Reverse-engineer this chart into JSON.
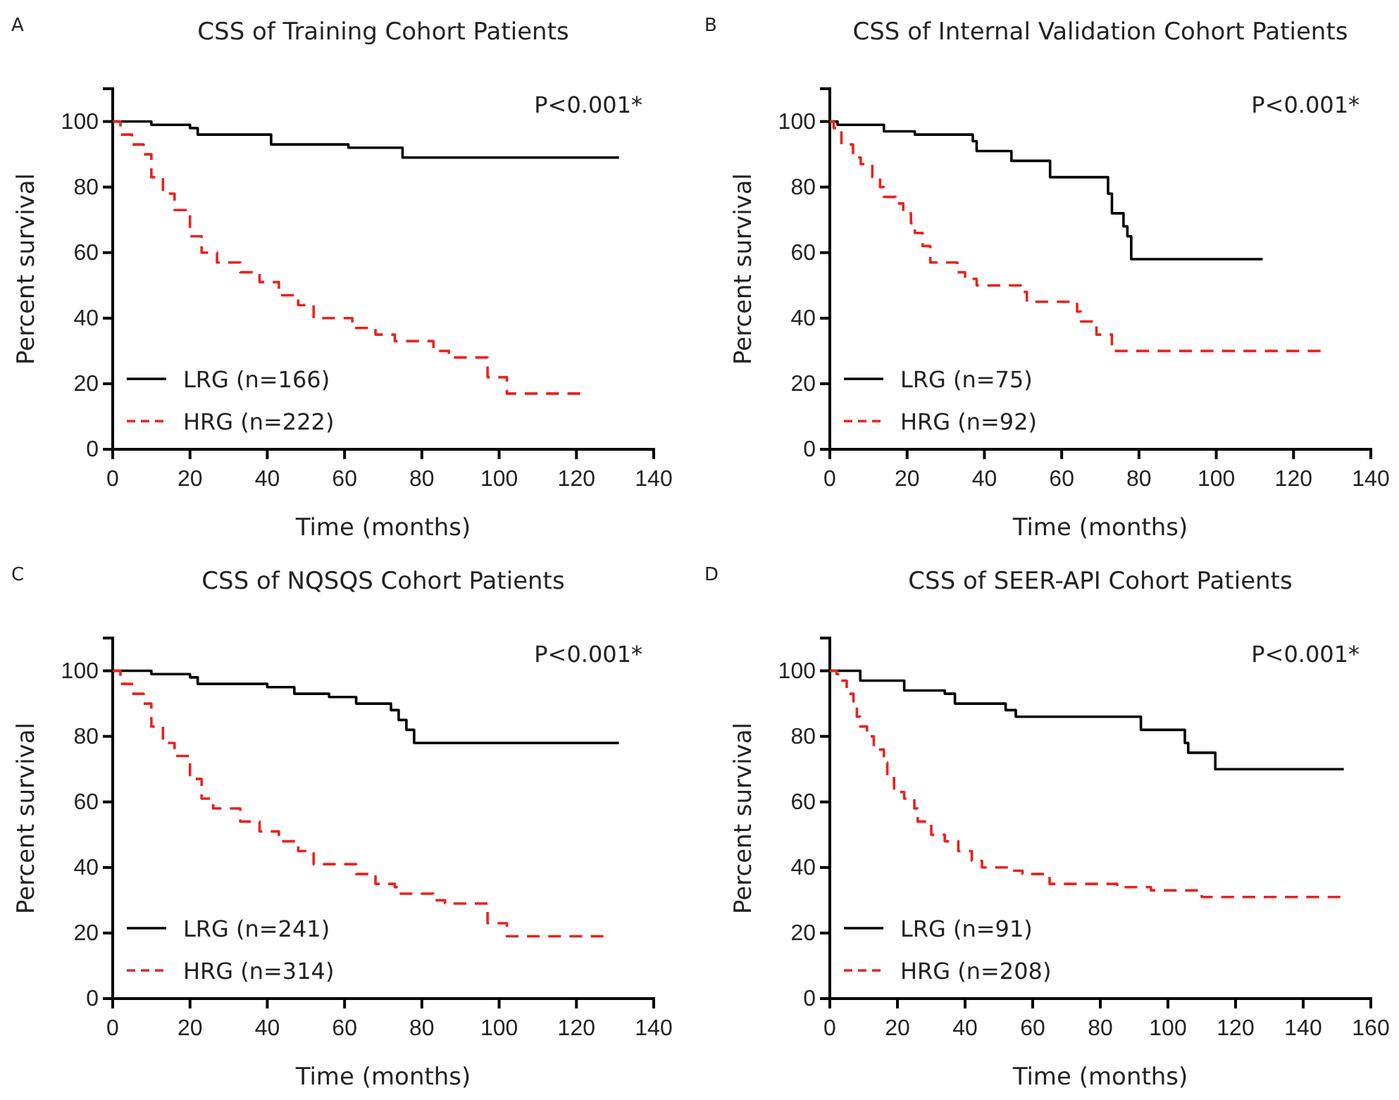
{
  "chart_data": [
    {
      "type": "step",
      "title": "CSS of Training Cohort Patients",
      "xlabel": "Time (months)",
      "ylabel": "Percent survival",
      "annotations": [
        "A",
        "P<0.001*"
      ],
      "xlim": [
        0,
        140
      ],
      "xticks": [
        0,
        20,
        40,
        60,
        80,
        100,
        120,
        140
      ],
      "ylim": [
        0,
        110
      ],
      "yticks": [
        0,
        20,
        40,
        60,
        80,
        100
      ],
      "legend": "bottom left",
      "grid": false,
      "series": [
        {
          "name": "LRG (n=166)",
          "color": "#000000",
          "line_style": "solid",
          "x": [
            0,
            10,
            20,
            22,
            41,
            61,
            75,
            131
          ],
          "values": [
            100,
            99,
            98,
            96,
            93,
            92,
            89,
            89
          ]
        },
        {
          "name": "HRG (n=222)",
          "color": "#e8231e",
          "line_style": "dashed",
          "x": [
            0,
            2,
            5,
            8,
            10,
            13,
            16,
            20,
            23,
            27,
            33,
            38,
            43,
            48,
            52,
            62,
            68,
            73,
            83,
            87,
            97,
            102,
            121
          ],
          "values": [
            100,
            96,
            93,
            90,
            83,
            78,
            73,
            65,
            60,
            57,
            54,
            51,
            47,
            44,
            40,
            37,
            35,
            33,
            30,
            28,
            22,
            17,
            17
          ]
        }
      ]
    },
    {
      "type": "step",
      "title": "CSS of Internal Validation Cohort Patients",
      "xlabel": "Time (months)",
      "ylabel": "Percent survival",
      "annotations": [
        "B",
        "P<0.001*"
      ],
      "xlim": [
        0,
        140
      ],
      "xticks": [
        0,
        20,
        40,
        60,
        80,
        100,
        120,
        140
      ],
      "ylim": [
        0,
        110
      ],
      "yticks": [
        0,
        20,
        40,
        60,
        80,
        100
      ],
      "legend": "bottom left",
      "grid": false,
      "series": [
        {
          "name": "LRG (n=75)",
          "color": "#000000",
          "line_style": "solid",
          "x": [
            0,
            2,
            14,
            22,
            37,
            38,
            47,
            57,
            72,
            73,
            76,
            77,
            78,
            112
          ],
          "values": [
            100,
            99,
            97,
            96,
            94,
            91,
            88,
            83,
            78,
            72,
            68,
            65,
            58,
            58
          ]
        },
        {
          "name": "HRG (n=92)",
          "color": "#e8231e",
          "line_style": "dashed",
          "x": [
            0,
            1,
            3,
            6,
            8,
            11,
            13,
            14,
            17,
            19,
            21,
            22,
            24,
            26,
            33,
            35,
            38,
            50,
            51,
            64,
            65,
            69,
            73,
            127
          ],
          "values": [
            100,
            98,
            93,
            89,
            87,
            83,
            80,
            77,
            75,
            72,
            69,
            66,
            62,
            57,
            54,
            52,
            50,
            48,
            45,
            42,
            39,
            35,
            30,
            30
          ]
        }
      ]
    },
    {
      "type": "step",
      "title": "CSS of NQSQS Cohort Patients",
      "xlabel": "Time (months)",
      "ylabel": "Percent survival",
      "annotations": [
        "C",
        "P<0.001*"
      ],
      "xlim": [
        0,
        140
      ],
      "xticks": [
        0,
        20,
        40,
        60,
        80,
        100,
        120,
        140
      ],
      "ylim": [
        0,
        110
      ],
      "yticks": [
        0,
        20,
        40,
        60,
        80,
        100
      ],
      "legend": "bottom left",
      "grid": false,
      "series": [
        {
          "name": "LRG (n=241)",
          "color": "#000000",
          "line_style": "solid",
          "x": [
            0,
            10,
            20,
            22,
            40,
            47,
            56,
            63,
            72,
            74,
            76,
            78,
            131
          ],
          "values": [
            100,
            99,
            98,
            96,
            95,
            93,
            92,
            90,
            88,
            85,
            82,
            78,
            78
          ]
        },
        {
          "name": "HRG (n=314)",
          "color": "#e8231e",
          "line_style": "dashed",
          "x": [
            0,
            2,
            5,
            8,
            10,
            13,
            16,
            20,
            23,
            26,
            33,
            38,
            43,
            48,
            52,
            63,
            68,
            73,
            74,
            83,
            86,
            97,
            102,
            127
          ],
          "values": [
            100,
            96,
            93,
            90,
            83,
            78,
            74,
            67,
            61,
            58,
            54,
            51,
            48,
            45,
            41,
            38,
            35,
            34,
            32,
            30,
            29,
            23,
            19,
            19
          ]
        }
      ]
    },
    {
      "type": "step",
      "title": "CSS of SEER-API Cohort Patients",
      "xlabel": "Time (months)",
      "ylabel": "Percent survival",
      "annotations": [
        "D",
        "P<0.001*"
      ],
      "xlim": [
        0,
        160
      ],
      "xticks": [
        0,
        20,
        40,
        60,
        80,
        100,
        120,
        140,
        160
      ],
      "ylim": [
        0,
        110
      ],
      "yticks": [
        0,
        20,
        40,
        60,
        80,
        100
      ],
      "legend": "bottom left",
      "grid": false,
      "series": [
        {
          "name": "LRG (n=91)",
          "color": "#000000",
          "line_style": "solid",
          "x": [
            0,
            9,
            22,
            34,
            37,
            52,
            55,
            92,
            105,
            106,
            114,
            152
          ],
          "values": [
            100,
            97,
            94,
            93,
            90,
            88,
            86,
            82,
            78,
            75,
            70,
            70
          ]
        },
        {
          "name": "HRG (n=208)",
          "color": "#e8231e",
          "line_style": "dashed",
          "x": [
            0,
            2,
            3,
            5,
            7,
            8,
            9,
            11,
            13,
            16,
            17,
            19,
            22,
            25,
            26,
            30,
            34,
            38,
            42,
            45,
            53,
            57,
            65,
            85,
            95,
            110,
            151
          ],
          "values": [
            100,
            99,
            97,
            93,
            90,
            86,
            83,
            80,
            76,
            72,
            68,
            63,
            61,
            58,
            54,
            50,
            48,
            45,
            42,
            40,
            39,
            38,
            35,
            34,
            33,
            31,
            31
          ]
        }
      ]
    }
  ]
}
